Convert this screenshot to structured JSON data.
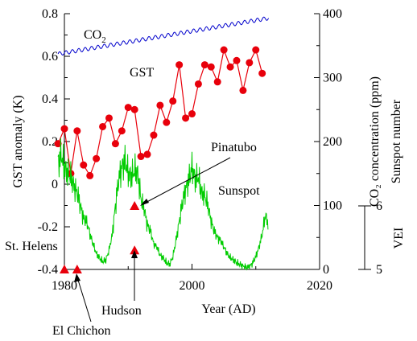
{
  "chart_data": {
    "type": "line",
    "xlabel": "Year (AD)",
    "xlim": [
      1980,
      2020
    ],
    "x_ticks": [
      "1980",
      "2000",
      "2020"
    ],
    "ylabel_left": "GST anomaly (K)",
    "ylim_left": [
      -0.4,
      0.8
    ],
    "y_ticks_left": [
      "0.8",
      "0.6",
      "0.4",
      "0.2",
      "0",
      "-0.2",
      "-0.4"
    ],
    "ylabel_right_co2": "CO₂ concentration (ppm)",
    "ylabel_right_sunspot": "Sunspot number",
    "ylim_right": [
      0,
      400
    ],
    "y_ticks_right": [
      "400",
      "300",
      "200",
      "100",
      "0"
    ],
    "vei_label": "VEI",
    "vei_range": [
      5,
      6
    ],
    "vei_ticks": [
      "6",
      "5"
    ],
    "series": [
      {
        "name": "GST",
        "axis": "left",
        "color": "#e8000b",
        "x": [
          1979,
          1980,
          1981,
          1982,
          1983,
          1984,
          1985,
          1986,
          1987,
          1988,
          1989,
          1990,
          1991,
          1992,
          1993,
          1994,
          1995,
          1996,
          1997,
          1998,
          1999,
          2000,
          2001,
          2002,
          2003,
          2004,
          2005,
          2006,
          2007,
          2008,
          2009,
          2010,
          2011
        ],
        "values": [
          0.19,
          0.26,
          0.05,
          0.25,
          0.09,
          0.04,
          0.12,
          0.27,
          0.31,
          0.19,
          0.25,
          0.36,
          0.35,
          0.13,
          0.14,
          0.23,
          0.37,
          0.29,
          0.39,
          0.56,
          0.31,
          0.33,
          0.47,
          0.56,
          0.55,
          0.48,
          0.63,
          0.55,
          0.58,
          0.44,
          0.57,
          0.63,
          0.52
        ]
      },
      {
        "name": "CO₂",
        "axis": "right",
        "color": "#0000cc",
        "x_start": 1979,
        "x_end": 2012,
        "values_start": 337,
        "values_end": 393,
        "seasonal_amplitude": 3
      },
      {
        "name": "Sunspot",
        "axis": "right",
        "color": "#00cc00",
        "x": [
          1979,
          1979.5,
          1980,
          1980.5,
          1981,
          1981.5,
          1982,
          1982.5,
          1983,
          1983.5,
          1984,
          1984.5,
          1985,
          1985.5,
          1986,
          1986.5,
          1987,
          1987.5,
          1988,
          1988.5,
          1989,
          1989.5,
          1990,
          1990.5,
          1991,
          1991.5,
          1992,
          1992.5,
          1993,
          1993.5,
          1994,
          1994.5,
          1995,
          1995.5,
          1996,
          1996.5,
          1997,
          1997.5,
          1998,
          1998.5,
          1999,
          1999.5,
          2000,
          2000.5,
          2001,
          2001.5,
          2002,
          2002.5,
          2003,
          2003.5,
          2004,
          2004.5,
          2005,
          2005.5,
          2006,
          2006.5,
          2007,
          2007.5,
          2008,
          2008.5,
          2009,
          2009.5,
          2010,
          2010.5,
          2011,
          2011.5,
          2012
        ],
        "values": [
          165,
          180,
          160,
          150,
          145,
          130,
          120,
          100,
          80,
          75,
          55,
          40,
          25,
          18,
          12,
          15,
          30,
          55,
          100,
          140,
          160,
          170,
          150,
          145,
          155,
          150,
          110,
          95,
          70,
          60,
          40,
          35,
          22,
          18,
          10,
          8,
          20,
          45,
          75,
          105,
          125,
          140,
          160,
          140,
          145,
          120,
          115,
          100,
          75,
          60,
          50,
          45,
          35,
          25,
          18,
          15,
          10,
          8,
          5,
          3,
          4,
          10,
          20,
          35,
          55,
          85,
          70
        ]
      }
    ],
    "eruptions": [
      {
        "name": "St. Helens",
        "year": 1980,
        "vei": 5
      },
      {
        "name": "El Chichon",
        "year": 1982,
        "vei": 5
      },
      {
        "name": "Pinatubo",
        "year": 1991,
        "vei": 6
      },
      {
        "name": "Hudson",
        "year": 1991,
        "vei": 5.3
      }
    ],
    "labels": {
      "co2": "CO",
      "co2_sub": "2",
      "gst": "GST",
      "sunspot": "Sunspot",
      "pinatubo": "Pinatubo",
      "st_helens": "St. Helens",
      "el_chichon": "El Chichon",
      "hudson": "Hudson"
    }
  }
}
